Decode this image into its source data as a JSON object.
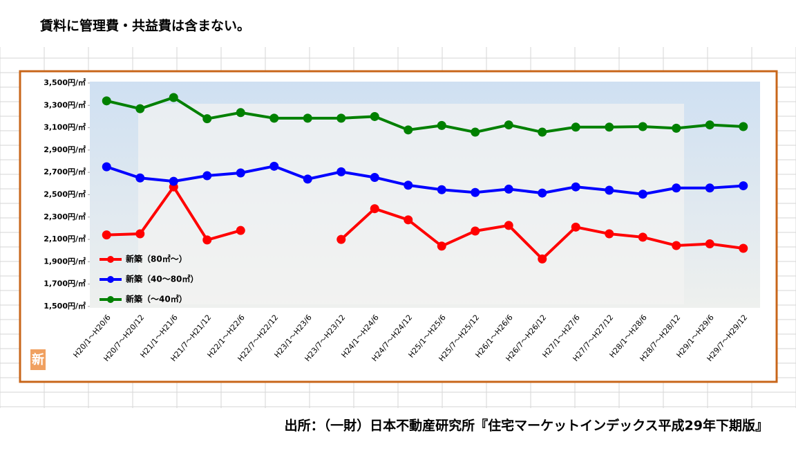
{
  "header": "賃料に管理費・共益費は含まない。",
  "footer": "出所：（一財）日本不動産研究所『住宅マーケットインデックス平成29年下期版』",
  "badge": "新",
  "chart_data": {
    "type": "line",
    "categories": [
      "H20/1～H20/6",
      "H20/7～H20/12",
      "H21/1～H21/6",
      "H21/7～H21/12",
      "H22/1～H22/6",
      "H22/7～H22/12",
      "H23/1～H23/6",
      "H23/7～H23/12",
      "H24/1～H24/6",
      "H24/7～H24/12",
      "H25/1～H25/6",
      "H25/7～H25/12",
      "H26/1～H26/6",
      "H26/7～H26/12",
      "H27/1～H27/6",
      "H27/7～H27/12",
      "H28/1～H28/6",
      "H28/7～H28/12",
      "H29/1～H29/6",
      "H29/7～H29/12"
    ],
    "series": [
      {
        "name": "新築（80㎡～）",
        "color": "#ff0000",
        "values": [
          2140,
          2150,
          2570,
          2095,
          2180,
          null,
          null,
          2100,
          2375,
          2275,
          2040,
          2175,
          2225,
          1925,
          2210,
          2150,
          2120,
          2045,
          2060,
          2020
        ]
      },
      {
        "name": "新築（40～80㎡）",
        "color": "#0000ff",
        "values": [
          2750,
          2650,
          2620,
          2670,
          2695,
          2755,
          2640,
          2705,
          2655,
          2585,
          2545,
          2520,
          2550,
          2515,
          2570,
          2540,
          2505,
          2560,
          2560,
          2580
        ]
      },
      {
        "name": "新築（～40㎡）",
        "color": "#008000",
        "values": [
          3340,
          3270,
          3370,
          3180,
          3235,
          3185,
          3185,
          3185,
          3200,
          3080,
          3120,
          3060,
          3125,
          3060,
          3105,
          3105,
          3110,
          3095,
          3125,
          3110
        ]
      }
    ],
    "ylim": [
      1500,
      3500
    ],
    "yticks": [
      {
        "value": 1500,
        "label": "1,500円/㎡"
      },
      {
        "value": 1700,
        "label": "1,700円/㎡"
      },
      {
        "value": 1900,
        "label": "1,900円/㎡"
      },
      {
        "value": 2100,
        "label": "2,100円/㎡"
      },
      {
        "value": 2300,
        "label": "2,300円/㎡"
      },
      {
        "value": 2500,
        "label": "2,500円/㎡"
      },
      {
        "value": 2700,
        "label": "2,700円/㎡"
      },
      {
        "value": 2900,
        "label": "2,900円/㎡"
      },
      {
        "value": 3100,
        "label": "3,100円/㎡"
      },
      {
        "value": 3300,
        "label": "3,300円/㎡"
      },
      {
        "value": 3500,
        "label": "3,500円/㎡"
      }
    ],
    "legend": "lower left"
  }
}
